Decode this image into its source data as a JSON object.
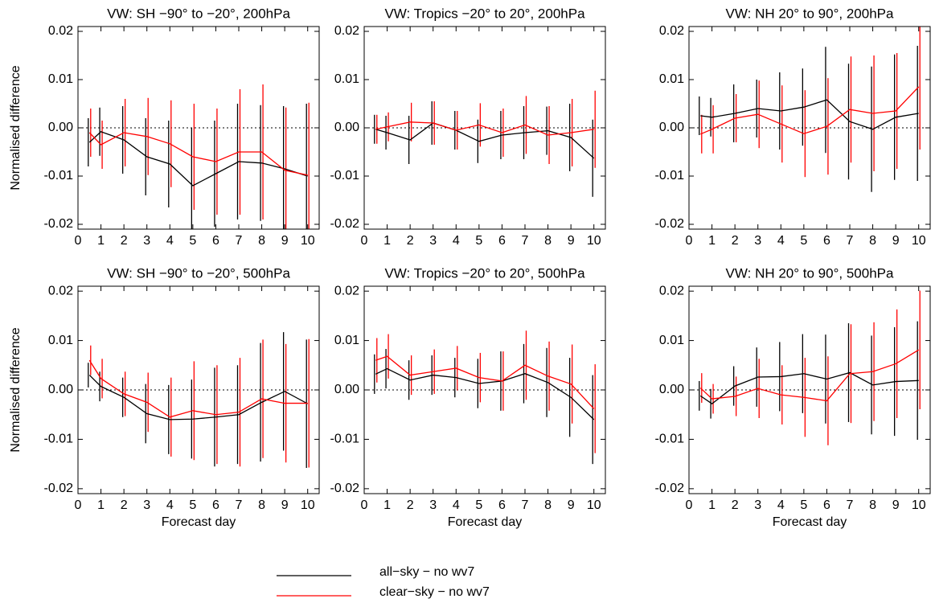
{
  "chart_data": [
    {
      "type": "line",
      "title": "VW: SH −90° to −20°, 200hPa",
      "ylabel": "Normalised difference",
      "x": [
        0.5,
        1,
        2,
        3,
        4,
        5,
        6,
        7,
        8,
        9,
        10
      ],
      "xlim": [
        0,
        10.5
      ],
      "xticks": [
        0,
        1,
        2,
        3,
        4,
        5,
        6,
        7,
        8,
        9,
        10
      ],
      "ylim": [
        -0.021,
        0.021
      ],
      "yticks": [
        -0.02,
        -0.01,
        {
          "value": 0,
          "label": "0.00"
        },
        0.01,
        0.02
      ],
      "reference_line": 0,
      "series": [
        {
          "name": "all−sky − no wv7",
          "color": "#000000",
          "values": [
            -0.003,
            -0.0008,
            -0.0025,
            -0.006,
            -0.0075,
            -0.012,
            -0.0095,
            -0.007,
            -0.0073,
            -0.0085,
            -0.01
          ],
          "errors": [
            0.005,
            0.005,
            0.007,
            0.008,
            0.009,
            0.012,
            0.011,
            0.012,
            0.012,
            0.013,
            0.015
          ]
        },
        {
          "name": "clear−sky − no wv7",
          "color": "#ff0000",
          "values": [
            -0.001,
            -0.0035,
            -0.001,
            -0.0018,
            -0.0033,
            -0.006,
            -0.007,
            -0.005,
            -0.005,
            -0.0088,
            -0.0098
          ],
          "errors": [
            0.005,
            0.005,
            0.007,
            0.008,
            0.009,
            0.011,
            0.011,
            0.013,
            0.014,
            0.013,
            0.015
          ]
        }
      ]
    },
    {
      "type": "line",
      "title": "VW: Tropics −20° to 20°, 200hPa",
      "x": [
        0.5,
        1,
        2,
        3,
        4,
        5,
        6,
        7,
        8,
        9,
        10
      ],
      "xlim": [
        0,
        10.5
      ],
      "xticks": [
        0,
        1,
        2,
        3,
        4,
        5,
        6,
        7,
        8,
        9,
        10
      ],
      "ylim": [
        -0.021,
        0.021
      ],
      "yticks": [
        -0.02,
        -0.01,
        {
          "value": 0,
          "label": "0.00"
        },
        0.01,
        0.02
      ],
      "reference_line": 0,
      "series": [
        {
          "name": "all−sky − no wv7",
          "color": "#000000",
          "values": [
            -0.0003,
            -0.001,
            -0.0025,
            0.001,
            -0.0005,
            -0.0028,
            -0.0015,
            -0.001,
            -0.0006,
            -0.002,
            -0.0063
          ],
          "errors": [
            0.003,
            0.0035,
            0.005,
            0.0045,
            0.004,
            0.0045,
            0.005,
            0.0055,
            0.005,
            0.007,
            0.008
          ]
        },
        {
          "name": "clear−sky − no wv7",
          "color": "#ff0000",
          "values": [
            -0.0003,
            0.0002,
            0.0012,
            0.001,
            -0.0005,
            0.0006,
            -0.001,
            0.0006,
            -0.0015,
            -0.001,
            -0.0003
          ],
          "errors": [
            0.003,
            0.003,
            0.004,
            0.0045,
            0.004,
            0.0045,
            0.005,
            0.006,
            0.006,
            0.007,
            0.008
          ]
        }
      ]
    },
    {
      "type": "line",
      "title": "VW: NH 20° to 90°, 200hPa",
      "x": [
        0.5,
        1,
        2,
        3,
        4,
        5,
        6,
        7,
        8,
        9,
        10
      ],
      "xlim": [
        0,
        10.5
      ],
      "xticks": [
        0,
        1,
        2,
        3,
        4,
        5,
        6,
        7,
        8,
        9,
        10
      ],
      "ylim": [
        -0.021,
        0.021
      ],
      "yticks": [
        -0.02,
        -0.01,
        {
          "value": 0,
          "label": "0.00"
        },
        0.01,
        0.02
      ],
      "reference_line": 0,
      "series": [
        {
          "name": "all−sky − no wv7",
          "color": "#000000",
          "values": [
            0.0025,
            0.0022,
            0.003,
            0.004,
            0.0035,
            0.0043,
            0.0058,
            0.0013,
            -0.0003,
            0.0022,
            0.003
          ],
          "errors": [
            0.004,
            0.004,
            0.006,
            0.006,
            0.008,
            0.008,
            0.011,
            0.012,
            0.013,
            0.013,
            0.014
          ]
        },
        {
          "name": "clear−sky − no wv7",
          "color": "#ff0000",
          "values": [
            -0.0013,
            -0.0003,
            0.002,
            0.0028,
            0.0008,
            -0.0012,
            0.0003,
            0.0038,
            0.003,
            0.0035,
            0.0085
          ],
          "errors": [
            0.004,
            0.005,
            0.005,
            0.007,
            0.008,
            0.009,
            0.01,
            0.011,
            0.012,
            0.012,
            0.013
          ]
        }
      ]
    },
    {
      "type": "line",
      "title": "VW: SH −90° to −20°, 500hPa",
      "ylabel": "Normalised difference",
      "xlabel": "Forecast day",
      "x": [
        0.5,
        1,
        2,
        3,
        4,
        5,
        6,
        7,
        8,
        9,
        10
      ],
      "xlim": [
        0,
        10.5
      ],
      "xticks": [
        0,
        1,
        2,
        3,
        4,
        5,
        6,
        7,
        8,
        9,
        10
      ],
      "ylim": [
        -0.021,
        0.021
      ],
      "yticks": [
        -0.02,
        -0.01,
        {
          "value": 0,
          "label": "0.00"
        },
        0.01,
        0.02
      ],
      "reference_line": 0,
      "series": [
        {
          "name": "all−sky − no wv7",
          "color": "#000000",
          "values": [
            0.003,
            0.0007,
            -0.0015,
            -0.0048,
            -0.006,
            -0.0059,
            -0.0055,
            -0.005,
            -0.0025,
            -0.0003,
            -0.0028
          ],
          "errors": [
            0.0025,
            0.003,
            0.004,
            0.006,
            0.007,
            0.008,
            0.01,
            0.01,
            0.012,
            0.012,
            0.013
          ]
        },
        {
          "name": "clear−sky − no wv7",
          "color": "#ff0000",
          "values": [
            0.006,
            0.0023,
            -0.0008,
            -0.0025,
            -0.0055,
            -0.0042,
            -0.005,
            -0.0045,
            -0.0018,
            -0.0027,
            -0.0027
          ],
          "errors": [
            0.003,
            0.004,
            0.0045,
            0.006,
            0.008,
            0.01,
            0.01,
            0.011,
            0.012,
            0.012,
            0.013
          ]
        }
      ]
    },
    {
      "type": "line",
      "title": "VW: Tropics −20° to 20°, 500hPa",
      "xlabel": "Forecast day",
      "x": [
        0.5,
        1,
        2,
        3,
        4,
        5,
        6,
        7,
        8,
        9,
        10
      ],
      "xlim": [
        0,
        10.5
      ],
      "xticks": [
        0,
        1,
        2,
        3,
        4,
        5,
        6,
        7,
        8,
        9,
        10
      ],
      "ylim": [
        -0.021,
        0.021
      ],
      "yticks": [
        -0.02,
        -0.01,
        {
          "value": 0,
          "label": "0.00"
        },
        0.01,
        0.02
      ],
      "reference_line": 0,
      "series": [
        {
          "name": "all−sky − no wv7",
          "color": "#000000",
          "values": [
            0.0032,
            0.0043,
            0.002,
            0.003,
            0.0025,
            0.0013,
            0.0018,
            0.0033,
            0.0015,
            -0.0015,
            -0.006
          ],
          "errors": [
            0.004,
            0.004,
            0.004,
            0.004,
            0.004,
            0.005,
            0.006,
            0.006,
            0.007,
            0.008,
            0.009
          ]
        },
        {
          "name": "clear−sky − no wv7",
          "color": "#ff0000",
          "values": [
            0.006,
            0.0068,
            0.003,
            0.0037,
            0.0044,
            0.0025,
            0.0018,
            0.005,
            0.0028,
            0.0012,
            -0.0038
          ],
          "errors": [
            0.0045,
            0.0045,
            0.004,
            0.0045,
            0.0045,
            0.005,
            0.006,
            0.007,
            0.007,
            0.008,
            0.009
          ]
        }
      ]
    },
    {
      "type": "line",
      "title": "VW: NH 20° to 90°, 500hPa",
      "xlabel": "Forecast day",
      "x": [
        0.5,
        1,
        2,
        3,
        4,
        5,
        6,
        7,
        8,
        9,
        10
      ],
      "xlim": [
        0,
        10.5
      ],
      "xticks": [
        0,
        1,
        2,
        3,
        4,
        5,
        6,
        7,
        8,
        9,
        10
      ],
      "ylim": [
        -0.021,
        0.021
      ],
      "yticks": [
        -0.02,
        -0.01,
        {
          "value": 0,
          "label": "0.00"
        },
        0.01,
        0.02
      ],
      "reference_line": 0,
      "series": [
        {
          "name": "all−sky − no wv7",
          "color": "#000000",
          "values": [
            -0.0012,
            -0.0028,
            0.0008,
            0.0026,
            0.0027,
            0.0033,
            0.0022,
            0.0035,
            0.001,
            0.0017,
            0.0019
          ],
          "errors": [
            0.003,
            0.003,
            0.004,
            0.006,
            0.007,
            0.008,
            0.009,
            0.01,
            0.01,
            0.011,
            0.012
          ]
        },
        {
          "name": "clear−sky − no wv7",
          "color": "#ff0000",
          "values": [
            0.0004,
            -0.0018,
            -0.0013,
            0.0003,
            -0.001,
            -0.0015,
            -0.0022,
            0.0033,
            0.0037,
            0.0053,
            0.0081
          ],
          "errors": [
            0.003,
            0.003,
            0.004,
            0.006,
            0.006,
            0.008,
            0.009,
            0.01,
            0.01,
            0.011,
            0.012
          ]
        }
      ]
    }
  ]
}
